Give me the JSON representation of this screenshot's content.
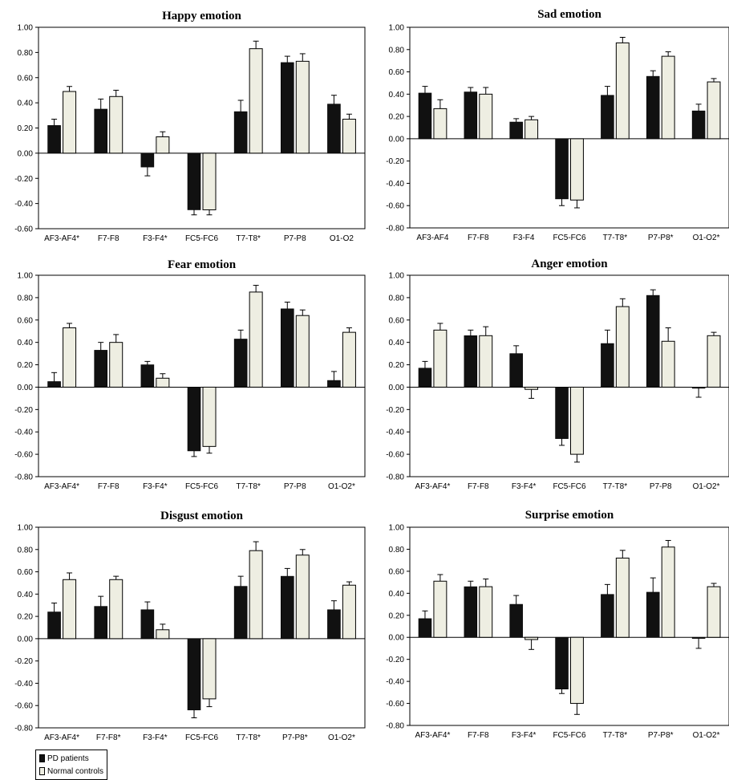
{
  "chart_data": [
    {
      "type": "bar",
      "title": "Happy emotion",
      "categories": [
        "AF3-AF4*",
        "F7-F8",
        "F3-F4*",
        "FC5-FC6",
        "T7-T8*",
        "P7-P8",
        "O1-O2"
      ],
      "ylim": [
        -0.6,
        1.0
      ],
      "yticks": [
        "1.00",
        "0.80",
        "0.60",
        "0.40",
        "0.20",
        "0.00",
        "-0.20",
        "-0.40",
        "-0.60"
      ],
      "series": [
        {
          "name": "PD patients",
          "values": [
            0.22,
            0.35,
            -0.11,
            -0.45,
            0.33,
            0.72,
            0.39
          ],
          "errors": [
            0.05,
            0.08,
            0.07,
            0.04,
            0.09,
            0.05,
            0.07
          ]
        },
        {
          "name": "Normal controls",
          "values": [
            0.49,
            0.45,
            0.13,
            -0.45,
            0.83,
            0.73,
            0.27
          ],
          "errors": [
            0.04,
            0.05,
            0.04,
            0.04,
            0.06,
            0.06,
            0.04
          ]
        }
      ]
    },
    {
      "type": "bar",
      "title": "Sad emotion",
      "categories": [
        "AF3-AF4",
        "F7-F8",
        "F3-F4",
        "FC5-FC6",
        "T7-T8*",
        "P7-P8*",
        "O1-O2*"
      ],
      "ylim": [
        -0.8,
        1.0
      ],
      "yticks": [
        "1.00",
        "0.80",
        "0.60",
        "0.40",
        "0.20",
        "0.00",
        "-0.20",
        "-0.40",
        "-0.60",
        "-0.80"
      ],
      "series": [
        {
          "name": "PD patients",
          "values": [
            0.41,
            0.42,
            0.15,
            -0.54,
            0.39,
            0.56,
            0.25
          ],
          "errors": [
            0.06,
            0.04,
            0.03,
            0.06,
            0.08,
            0.05,
            0.06
          ]
        },
        {
          "name": "Normal controls",
          "values": [
            0.27,
            0.4,
            0.17,
            -0.55,
            0.86,
            0.74,
            0.51
          ],
          "errors": [
            0.08,
            0.06,
            0.03,
            0.07,
            0.05,
            0.04,
            0.03
          ]
        }
      ]
    },
    {
      "type": "bar",
      "title": "Fear emotion",
      "categories": [
        "AF3-AF4*",
        "F7-F8",
        "F3-F4*",
        "FC5-FC6",
        "T7-T8*",
        "P7-P8",
        "O1-O2*"
      ],
      "ylim": [
        -0.8,
        1.0
      ],
      "yticks": [
        "1.00",
        "0.80",
        "0.60",
        "0.40",
        "0.20",
        "0.00",
        "-0.20",
        "-0.40",
        "-0.60",
        "-0.80"
      ],
      "series": [
        {
          "name": "PD patients",
          "values": [
            0.05,
            0.33,
            0.2,
            -0.57,
            0.43,
            0.7,
            0.06
          ],
          "errors": [
            0.08,
            0.07,
            0.03,
            0.05,
            0.08,
            0.06,
            0.08
          ]
        },
        {
          "name": "Normal controls",
          "values": [
            0.53,
            0.4,
            0.08,
            -0.53,
            0.85,
            0.64,
            0.49
          ],
          "errors": [
            0.04,
            0.07,
            0.04,
            0.06,
            0.06,
            0.05,
            0.04
          ]
        }
      ]
    },
    {
      "type": "bar",
      "title": "Anger emotion",
      "categories": [
        "AF3-AF4*",
        "F7-F8",
        "F3-F4*",
        "FC5-FC6",
        "T7-T8*",
        "P7-P8",
        "O1-O2*"
      ],
      "ylim": [
        -0.8,
        1.0
      ],
      "yticks": [
        "1.00",
        "0.80",
        "0.60",
        "0.40",
        "0.20",
        "0.00",
        "-0.20",
        "-0.40",
        "-0.60",
        "-0.80"
      ],
      "series": [
        {
          "name": "PD patients",
          "values": [
            0.17,
            0.46,
            0.3,
            -0.46,
            0.39,
            0.82,
            -0.01
          ],
          "errors": [
            0.06,
            0.05,
            0.07,
            0.06,
            0.12,
            0.05,
            0.08
          ]
        },
        {
          "name": "Normal controls",
          "values": [
            0.51,
            0.46,
            -0.02,
            -0.6,
            0.72,
            0.41,
            0.46
          ],
          "errors": [
            0.06,
            0.08,
            0.08,
            0.07,
            0.07,
            0.12,
            0.03
          ]
        }
      ]
    },
    {
      "type": "bar",
      "title": "Disgust emotion",
      "categories": [
        "AF3-AF4*",
        "F7-F8*",
        "F3-F4*",
        "FC5-FC6",
        "T7-T8*",
        "P7-P8*",
        "O1-O2*"
      ],
      "ylim": [
        -0.8,
        1.0
      ],
      "yticks": [
        "1.00",
        "0.80",
        "0.60",
        "0.40",
        "0.20",
        "0.00",
        "-0.20",
        "-0.40",
        "-0.60",
        "-0.80"
      ],
      "series": [
        {
          "name": "PD patients",
          "values": [
            0.24,
            0.29,
            0.26,
            -0.64,
            0.47,
            0.56,
            0.26
          ],
          "errors": [
            0.08,
            0.09,
            0.07,
            0.07,
            0.09,
            0.07,
            0.08
          ]
        },
        {
          "name": "Normal controls",
          "values": [
            0.53,
            0.53,
            0.08,
            -0.54,
            0.79,
            0.75,
            0.48
          ],
          "errors": [
            0.06,
            0.03,
            0.05,
            0.07,
            0.08,
            0.05,
            0.03
          ]
        }
      ]
    },
    {
      "type": "bar",
      "title": "Surprise  emotion",
      "categories": [
        "AF3-AF4*",
        "F7-F8",
        "F3-F4*",
        "FC5-FC6",
        "T7-T8*",
        "P7-P8*",
        "O1-O2*"
      ],
      "ylim": [
        -0.8,
        1.0
      ],
      "yticks": [
        "1.00",
        "0.80",
        "0.60",
        "0.40",
        "0.20",
        "0.00",
        "-0.20",
        "-0.40",
        "-0.60",
        "-0.80"
      ],
      "series": [
        {
          "name": "PD patients",
          "values": [
            0.17,
            0.46,
            0.3,
            -0.47,
            0.39,
            0.41,
            -0.01
          ],
          "errors": [
            0.07,
            0.05,
            0.08,
            0.04,
            0.09,
            0.13,
            0.09
          ]
        },
        {
          "name": "Normal controls",
          "values": [
            0.51,
            0.46,
            -0.02,
            -0.6,
            0.72,
            0.82,
            0.46
          ],
          "errors": [
            0.06,
            0.07,
            0.09,
            0.1,
            0.07,
            0.06,
            0.03
          ]
        }
      ]
    }
  ],
  "legend": {
    "pd_label": "PD patients",
    "nc_label": "Normal controls",
    "pd_color": "#111111",
    "nc_color": "#eeeee2"
  }
}
